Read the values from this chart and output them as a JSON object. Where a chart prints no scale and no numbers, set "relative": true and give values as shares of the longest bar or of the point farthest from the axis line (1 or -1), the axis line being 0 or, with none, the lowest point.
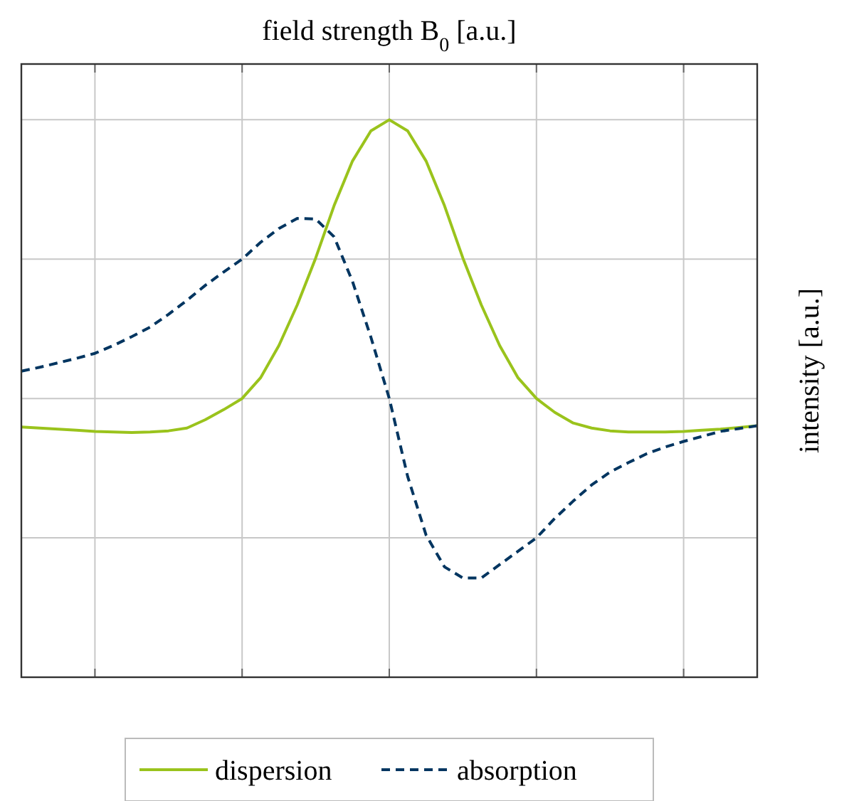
{
  "chart_data": {
    "type": "line",
    "title": "field strength B$_{0}$ [a.u.]",
    "ylabel": "intensity [a.u.]",
    "relative": true,
    "grid": true,
    "legend": "bottom",
    "categories": [
      null,
      null,
      null,
      null,
      null,
      null,
      null,
      null,
      null,
      null,
      null,
      null,
      null,
      null,
      null,
      null,
      null,
      null,
      null,
      null,
      null,
      null,
      null,
      null,
      null,
      null,
      null,
      null,
      null,
      null,
      null,
      null,
      null,
      null,
      null,
      null,
      null,
      null,
      null,
      null,
      null
    ],
    "series": [
      {
        "name": "dispersion",
        "color": "#9ac31c",
        "line_style": "solid",
        "values": [
          0.449,
          0.447,
          0.445,
          0.443,
          0.441,
          0.44,
          0.439,
          0.44,
          0.442,
          0.447,
          0.462,
          0.48,
          0.5,
          0.537,
          0.595,
          0.668,
          0.752,
          0.846,
          0.926,
          0.98,
          1,
          0.98,
          0.926,
          0.846,
          0.752,
          0.668,
          0.595,
          0.537,
          0.5,
          0.475,
          0.456,
          0.447,
          0.442,
          0.44,
          0.44,
          0.44,
          0.441,
          0.443,
          0.445,
          0.448,
          0.451
        ]
      },
      {
        "name": "absorption",
        "color": "#003560",
        "line_style": "dashed",
        "values": [
          0.549,
          0.556,
          0.564,
          0.572,
          0.581,
          0.595,
          0.611,
          0.628,
          0.651,
          0.676,
          0.703,
          0.727,
          0.75,
          0.78,
          0.805,
          0.823,
          0.822,
          0.79,
          0.71,
          0.61,
          0.5,
          0.36,
          0.255,
          0.198,
          0.178,
          0.178,
          0.202,
          0.226,
          0.25,
          0.285,
          0.316,
          0.345,
          0.368,
          0.385,
          0.401,
          0.413,
          0.423,
          0.432,
          0.441,
          0.446,
          0.451
        ]
      }
    ]
  }
}
